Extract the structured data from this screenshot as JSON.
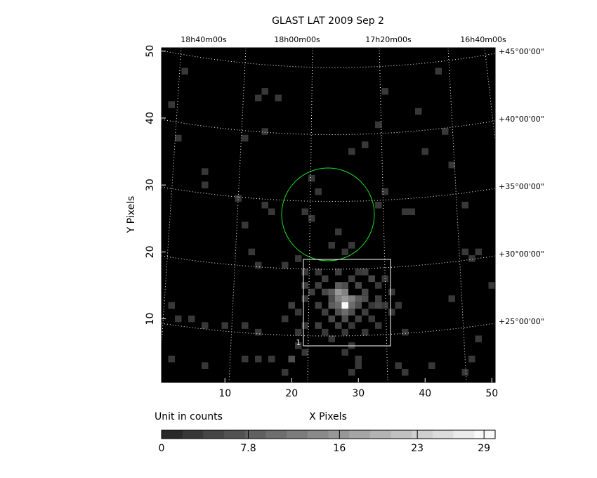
{
  "chart_data": {
    "type": "heatmap",
    "title": "GLAST LAT   2009 Sep  2",
    "xlabel": "X Pixels",
    "ylabel": "Y Pixels",
    "colorbar_label": "Unit in counts",
    "xlim": [
      0.5,
      50.5
    ],
    "ylim": [
      0.5,
      50.5
    ],
    "xticks": [
      10,
      20,
      30,
      40,
      50
    ],
    "yticks": [
      10,
      20,
      30,
      40,
      50
    ],
    "clim": [
      0,
      30
    ],
    "cbar_ticks": [
      0,
      7.8,
      16,
      23,
      29
    ],
    "ra_labels": [
      "18h40m00s",
      "18h00m00s",
      "17h20m00s",
      "16h40m00s"
    ],
    "dec_labels": [
      "+45°00'00\"",
      "+40°00'00\"",
      "+35°00'00\"",
      "+30°00'00\"",
      "+25°00'00\""
    ],
    "region_label": "1",
    "pixels": [
      {
        "x": 4,
        "y": 47,
        "value": 3
      },
      {
        "x": 2,
        "y": 42,
        "value": 3
      },
      {
        "x": 3,
        "y": 37,
        "value": 3
      },
      {
        "x": 7,
        "y": 32,
        "value": 3
      },
      {
        "x": 7,
        "y": 30,
        "value": 3
      },
      {
        "x": 15,
        "y": 43,
        "value": 3
      },
      {
        "x": 16,
        "y": 44,
        "value": 3
      },
      {
        "x": 18,
        "y": 43,
        "value": 3
      },
      {
        "x": 16,
        "y": 38,
        "value": 3
      },
      {
        "x": 13,
        "y": 37,
        "value": 3
      },
      {
        "x": 29,
        "y": 35,
        "value": 3
      },
      {
        "x": 31,
        "y": 36,
        "value": 3
      },
      {
        "x": 33,
        "y": 39,
        "value": 3
      },
      {
        "x": 34,
        "y": 44,
        "value": 3
      },
      {
        "x": 39,
        "y": 41,
        "value": 3
      },
      {
        "x": 40,
        "y": 35,
        "value": 3
      },
      {
        "x": 42,
        "y": 47,
        "value": 3
      },
      {
        "x": 43,
        "y": 38,
        "value": 3
      },
      {
        "x": 44,
        "y": 33,
        "value": 3
      },
      {
        "x": 23,
        "y": 31,
        "value": 3
      },
      {
        "x": 24,
        "y": 29,
        "value": 3
      },
      {
        "x": 12,
        "y": 28,
        "value": 3
      },
      {
        "x": 16,
        "y": 27,
        "value": 3
      },
      {
        "x": 17,
        "y": 26,
        "value": 3
      },
      {
        "x": 13,
        "y": 24,
        "value": 3
      },
      {
        "x": 22,
        "y": 26,
        "value": 3
      },
      {
        "x": 23,
        "y": 25,
        "value": 3
      },
      {
        "x": 27,
        "y": 23,
        "value": 3
      },
      {
        "x": 33,
        "y": 27,
        "value": 3
      },
      {
        "x": 34,
        "y": 29,
        "value": 3
      },
      {
        "x": 37,
        "y": 26,
        "value": 3
      },
      {
        "x": 38,
        "y": 26,
        "value": 3
      },
      {
        "x": 46,
        "y": 27,
        "value": 3
      },
      {
        "x": 14,
        "y": 20,
        "value": 3
      },
      {
        "x": 15,
        "y": 18,
        "value": 3
      },
      {
        "x": 19,
        "y": 18,
        "value": 3
      },
      {
        "x": 21,
        "y": 19,
        "value": 3
      },
      {
        "x": 26,
        "y": 21,
        "value": 3
      },
      {
        "x": 28,
        "y": 20,
        "value": 3
      },
      {
        "x": 29,
        "y": 21,
        "value": 3
      },
      {
        "x": 46,
        "y": 20,
        "value": 3
      },
      {
        "x": 47,
        "y": 19,
        "value": 3
      },
      {
        "x": 48,
        "y": 20,
        "value": 3
      },
      {
        "x": 44,
        "y": 13,
        "value": 3
      },
      {
        "x": 50,
        "y": 15,
        "value": 3
      },
      {
        "x": 2,
        "y": 12,
        "value": 3
      },
      {
        "x": 3,
        "y": 10,
        "value": 3
      },
      {
        "x": 5,
        "y": 10,
        "value": 3
      },
      {
        "x": 7,
        "y": 9,
        "value": 3
      },
      {
        "x": 10,
        "y": 9,
        "value": 3
      },
      {
        "x": 13,
        "y": 9,
        "value": 3
      },
      {
        "x": 15,
        "y": 8,
        "value": 3
      },
      {
        "x": 2,
        "y": 4,
        "value": 3
      },
      {
        "x": 7,
        "y": 3,
        "value": 3
      },
      {
        "x": 13,
        "y": 4,
        "value": 3
      },
      {
        "x": 15,
        "y": 4,
        "value": 3
      },
      {
        "x": 17,
        "y": 4,
        "value": 3
      },
      {
        "x": 19,
        "y": 2,
        "value": 3
      },
      {
        "x": 20,
        "y": 4,
        "value": 6
      },
      {
        "x": 21,
        "y": 6,
        "value": 3
      },
      {
        "x": 22,
        "y": 5,
        "value": 3
      },
      {
        "x": 29,
        "y": 2,
        "value": 3
      },
      {
        "x": 30,
        "y": 3,
        "value": 3
      },
      {
        "x": 30,
        "y": 4,
        "value": 3
      },
      {
        "x": 36,
        "y": 3,
        "value": 3
      },
      {
        "x": 37,
        "y": 2,
        "value": 3
      },
      {
        "x": 41,
        "y": 3,
        "value": 3
      },
      {
        "x": 46,
        "y": 2,
        "value": 3
      },
      {
        "x": 47,
        "y": 4,
        "value": 3
      },
      {
        "x": 48,
        "y": 7,
        "value": 3
      },
      {
        "x": 37,
        "y": 8,
        "value": 3
      },
      {
        "x": 36,
        "y": 12,
        "value": 3
      },
      {
        "x": 35,
        "y": 14,
        "value": 3
      },
      {
        "x": 35,
        "y": 11,
        "value": 3
      },
      {
        "x": 34,
        "y": 16,
        "value": 3
      },
      {
        "x": 33,
        "y": 15,
        "value": 3
      },
      {
        "x": 28,
        "y": 12,
        "value": 29
      },
      {
        "x": 28,
        "y": 13,
        "value": 16
      },
      {
        "x": 27,
        "y": 13,
        "value": 13
      },
      {
        "x": 29,
        "y": 13,
        "value": 13
      },
      {
        "x": 27,
        "y": 14,
        "value": 16
      },
      {
        "x": 28,
        "y": 14,
        "value": 13
      },
      {
        "x": 29,
        "y": 12,
        "value": 10
      },
      {
        "x": 27,
        "y": 12,
        "value": 10
      },
      {
        "x": 26,
        "y": 12,
        "value": 8
      },
      {
        "x": 28,
        "y": 11,
        "value": 10
      },
      {
        "x": 27,
        "y": 11,
        "value": 6
      },
      {
        "x": 29,
        "y": 11,
        "value": 6
      },
      {
        "x": 26,
        "y": 14,
        "value": 8
      },
      {
        "x": 27,
        "y": 15,
        "value": 8
      },
      {
        "x": 28,
        "y": 15,
        "value": 6
      },
      {
        "x": 26,
        "y": 13,
        "value": 6
      },
      {
        "x": 25,
        "y": 14,
        "value": 5
      },
      {
        "x": 30,
        "y": 13,
        "value": 8
      },
      {
        "x": 30,
        "y": 12,
        "value": 6
      },
      {
        "x": 31,
        "y": 13,
        "value": 6
      },
      {
        "x": 31,
        "y": 14,
        "value": 5
      },
      {
        "x": 30,
        "y": 15,
        "value": 5
      },
      {
        "x": 32,
        "y": 16,
        "value": 5
      },
      {
        "x": 31,
        "y": 17,
        "value": 4
      },
      {
        "x": 28,
        "y": 10,
        "value": 6
      },
      {
        "x": 26,
        "y": 10,
        "value": 5
      },
      {
        "x": 25,
        "y": 11,
        "value": 4
      },
      {
        "x": 24,
        "y": 12,
        "value": 4
      },
      {
        "x": 24,
        "y": 15,
        "value": 4
      },
      {
        "x": 25,
        "y": 16,
        "value": 4
      },
      {
        "x": 23,
        "y": 14,
        "value": 4
      },
      {
        "x": 22,
        "y": 13,
        "value": 3
      },
      {
        "x": 22,
        "y": 15,
        "value": 4
      },
      {
        "x": 21,
        "y": 11,
        "value": 3
      },
      {
        "x": 20,
        "y": 12,
        "value": 4
      },
      {
        "x": 24,
        "y": 9,
        "value": 4
      },
      {
        "x": 25,
        "y": 8,
        "value": 3
      },
      {
        "x": 27,
        "y": 9,
        "value": 4
      },
      {
        "x": 28,
        "y": 8,
        "value": 3
      },
      {
        "x": 29,
        "y": 9,
        "value": 3
      },
      {
        "x": 30,
        "y": 10,
        "value": 4
      },
      {
        "x": 31,
        "y": 11,
        "value": 4
      },
      {
        "x": 32,
        "y": 10,
        "value": 3
      },
      {
        "x": 33,
        "y": 12,
        "value": 5
      },
      {
        "x": 33,
        "y": 9,
        "value": 3
      },
      {
        "x": 31,
        "y": 8,
        "value": 3
      },
      {
        "x": 29,
        "y": 6,
        "value": 3
      },
      {
        "x": 28,
        "y": 5,
        "value": 3
      },
      {
        "x": 26,
        "y": 7,
        "value": 3
      },
      {
        "x": 22,
        "y": 9,
        "value": 3
      },
      {
        "x": 21,
        "y": 8,
        "value": 3
      },
      {
        "x": 19,
        "y": 10,
        "value": 3
      },
      {
        "x": 22,
        "y": 17,
        "value": 3
      },
      {
        "x": 24,
        "y": 17,
        "value": 3
      },
      {
        "x": 27,
        "y": 17,
        "value": 4
      },
      {
        "x": 29,
        "y": 16,
        "value": 4
      },
      {
        "x": 30,
        "y": 17,
        "value": 3
      },
      {
        "x": 34,
        "y": 12,
        "value": 3
      },
      {
        "x": 33,
        "y": 13,
        "value": 4
      },
      {
        "x": 32,
        "y": 12,
        "value": 3
      }
    ]
  }
}
